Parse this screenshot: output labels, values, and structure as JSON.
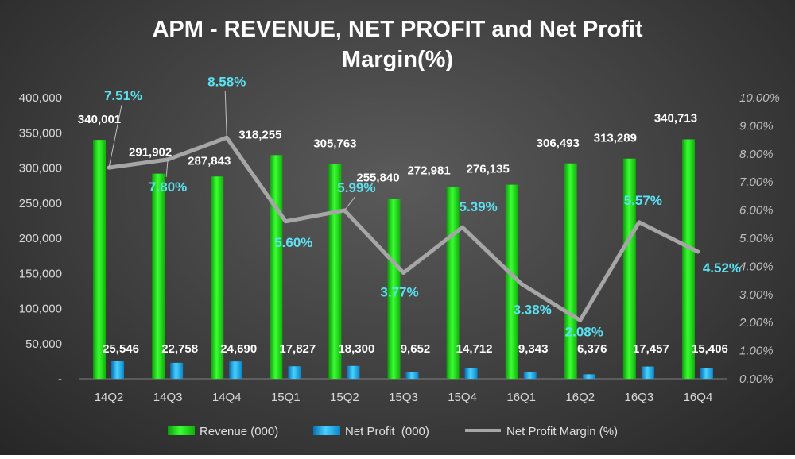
{
  "chart_data": {
    "type": "bar+line",
    "title_line1": "APM - REVENUE, NET PROFIT and Net Profit",
    "title_line2": "Margin(%)",
    "categories": [
      "14Q2",
      "14Q3",
      "14Q4",
      "15Q1",
      "15Q2",
      "15Q3",
      "15Q4",
      "16Q1",
      "16Q2",
      "16Q3",
      "16Q4"
    ],
    "series": [
      {
        "name": "Revenue (000)",
        "type": "bar",
        "axis": "left",
        "color": "#22e81c",
        "values": [
          340001,
          291902,
          287843,
          318255,
          305763,
          255840,
          272981,
          276135,
          306493,
          313289,
          340713
        ],
        "labels": [
          "340,001",
          "291,902",
          "287,843",
          "318,255",
          "305,763",
          "255,840",
          "272,981",
          "276,135",
          "306,493",
          "313,289",
          "340,713"
        ]
      },
      {
        "name": "Net Profit  (000)",
        "type": "bar",
        "axis": "left",
        "color": "#27b4f0",
        "values": [
          25546,
          22758,
          24690,
          17827,
          18300,
          9652,
          14712,
          9343,
          6376,
          17457,
          15406
        ],
        "labels": [
          "25,546",
          "22,758",
          "24,690",
          "17,827",
          "18,300",
          "9,652",
          "14,712",
          "9,343",
          "6,376",
          "17,457",
          "15,406"
        ]
      },
      {
        "name": "Net Profit Margin (%)",
        "type": "line",
        "axis": "right",
        "color": "#a6a6a6",
        "values": [
          7.51,
          7.8,
          8.58,
          5.6,
          5.99,
          3.77,
          5.39,
          3.38,
          2.08,
          5.57,
          4.52
        ],
        "labels": [
          "7.51%",
          "7.80%",
          "8.58%",
          "5.60%",
          "5.99%",
          "3.77%",
          "5.39%",
          "3.38%",
          "2.08%",
          "5.57%",
          "4.52%"
        ]
      }
    ],
    "y_left": {
      "min": 0,
      "max": 400000,
      "step": 50000,
      "tick_labels": [
        "-",
        "50,000",
        "100,000",
        "150,000",
        "200,000",
        "250,000",
        "300,000",
        "350,000",
        "400,000"
      ]
    },
    "y_right": {
      "min": 0,
      "max": 10,
      "step": 1,
      "tick_labels": [
        "0.00%",
        "1.00%",
        "2.00%",
        "3.00%",
        "4.00%",
        "5.00%",
        "6.00%",
        "7.00%",
        "8.00%",
        "9.00%",
        "10.00%"
      ]
    },
    "legend_position": "bottom",
    "grid": false
  },
  "colors": {
    "revenue": "#22e81c",
    "net_profit": "#27b4f0",
    "margin_line": "#a6a6a6",
    "margin_label": "#5ce1f2"
  }
}
